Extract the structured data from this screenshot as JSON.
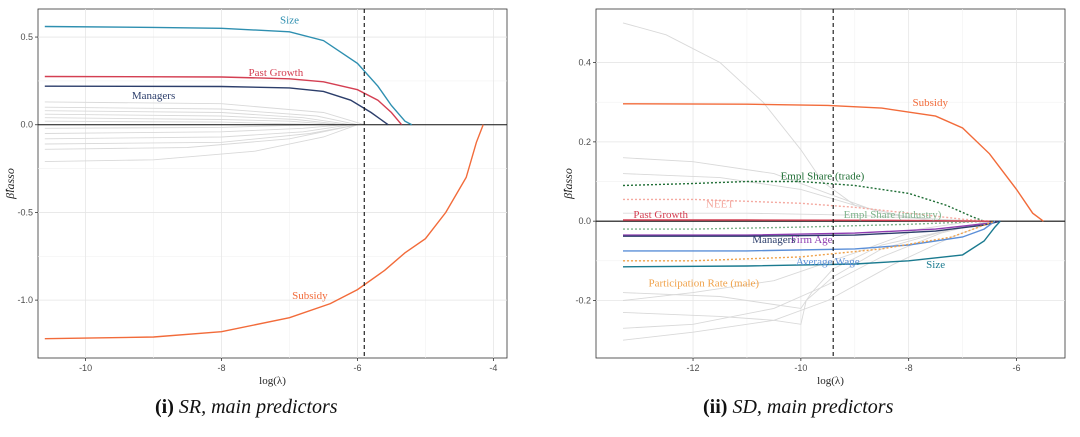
{
  "captions": [
    {
      "num": "(i)",
      "text": "SR, main predictors"
    },
    {
      "num": "(ii)",
      "text": "SD, main predictors"
    }
  ],
  "chart_data": [
    {
      "type": "line",
      "xlabel": "log(λ)",
      "ylabel": "β̂lasso",
      "xlim": [
        -10.7,
        -3.8
      ],
      "ylim": [
        -1.33,
        0.66
      ],
      "xticks": [
        -10,
        -8,
        -6,
        -4
      ],
      "yticks": [
        0.5,
        0.0,
        -0.5,
        -1.0
      ],
      "ytick_labels": [
        "0.5",
        "0.0",
        "-0.5",
        "-1.0"
      ],
      "vline": -5.9,
      "series": [
        {
          "name": "Size",
          "color": "#2e8fb0",
          "label_at": [
            -7.0,
            0.6
          ],
          "points": [
            [
              -10.6,
              0.56
            ],
            [
              -9,
              0.555
            ],
            [
              -8,
              0.55
            ],
            [
              -7,
              0.53
            ],
            [
              -6.5,
              0.48
            ],
            [
              -6,
              0.35
            ],
            [
              -5.7,
              0.22
            ],
            [
              -5.5,
              0.11
            ],
            [
              -5.3,
              0.02
            ],
            [
              -5.2,
              0.0
            ]
          ]
        },
        {
          "name": "Past Growth",
          "color": "#d43f52",
          "label_at": [
            -7.2,
            0.3
          ],
          "points": [
            [
              -10.6,
              0.275
            ],
            [
              -8,
              0.272
            ],
            [
              -7,
              0.262
            ],
            [
              -6.5,
              0.245
            ],
            [
              -6,
              0.2
            ],
            [
              -5.7,
              0.14
            ],
            [
              -5.5,
              0.07
            ],
            [
              -5.35,
              0.0
            ]
          ]
        },
        {
          "name": "Managers",
          "color": "#2c3e6b",
          "label_at": [
            -9.0,
            0.17
          ],
          "points": [
            [
              -10.6,
              0.22
            ],
            [
              -8,
              0.218
            ],
            [
              -7,
              0.21
            ],
            [
              -6.5,
              0.19
            ],
            [
              -6.1,
              0.14
            ],
            [
              -5.8,
              0.07
            ],
            [
              -5.55,
              0.0
            ]
          ]
        },
        {
          "name": "Subsidy",
          "color": "#f26b3a",
          "label_at": [
            -6.7,
            -0.97
          ],
          "points": [
            [
              -10.6,
              -1.22
            ],
            [
              -9,
              -1.21
            ],
            [
              -8,
              -1.18
            ],
            [
              -7,
              -1.1
            ],
            [
              -6.4,
              -1.02
            ],
            [
              -6,
              -0.94
            ],
            [
              -5.6,
              -0.83
            ],
            [
              -5.3,
              -0.73
            ],
            [
              -5,
              -0.65
            ],
            [
              -4.7,
              -0.5
            ],
            [
              -4.4,
              -0.3
            ],
            [
              -4.25,
              -0.1
            ],
            [
              -4.15,
              0.0
            ]
          ]
        }
      ],
      "background_series": [
        [
          [
            -10.6,
            0.13
          ],
          [
            -8,
            0.12
          ],
          [
            -6.5,
            0.07
          ],
          [
            -5.9,
            0.0
          ]
        ],
        [
          [
            -10.6,
            0.1
          ],
          [
            -8,
            0.09
          ],
          [
            -6.6,
            0.05
          ],
          [
            -6.0,
            0.0
          ]
        ],
        [
          [
            -10.6,
            0.08
          ],
          [
            -8,
            0.07
          ],
          [
            -6.8,
            0.04
          ],
          [
            -6.1,
            0.0
          ]
        ],
        [
          [
            -10.6,
            0.06
          ],
          [
            -8,
            0.05
          ],
          [
            -6.9,
            0.03
          ],
          [
            -6.2,
            0.0
          ]
        ],
        [
          [
            -10.6,
            0.04
          ],
          [
            -8,
            0.03
          ],
          [
            -7,
            0.02
          ],
          [
            -6.3,
            0.0
          ]
        ],
        [
          [
            -10.6,
            0.02
          ],
          [
            -8,
            0.015
          ],
          [
            -6.5,
            0.0
          ]
        ],
        [
          [
            -10.6,
            -0.02
          ],
          [
            -8,
            -0.015
          ],
          [
            -6.6,
            0.0
          ]
        ],
        [
          [
            -10.6,
            -0.05
          ],
          [
            -8,
            -0.04
          ],
          [
            -6.8,
            -0.02
          ],
          [
            -6.2,
            0.0
          ]
        ],
        [
          [
            -10.6,
            -0.08
          ],
          [
            -8,
            -0.07
          ],
          [
            -6.8,
            -0.04
          ],
          [
            -6.1,
            0.0
          ]
        ],
        [
          [
            -10.6,
            -0.11
          ],
          [
            -8,
            -0.1
          ],
          [
            -6.7,
            -0.05
          ],
          [
            -6.0,
            0.0
          ]
        ],
        [
          [
            -10.6,
            -0.14
          ],
          [
            -8.5,
            -0.13
          ],
          [
            -7,
            -0.08
          ],
          [
            -6.0,
            0.0
          ]
        ],
        [
          [
            -10.6,
            -0.21
          ],
          [
            -9,
            -0.2
          ],
          [
            -7.5,
            -0.15
          ],
          [
            -6.5,
            -0.07
          ],
          [
            -6.0,
            0.0
          ]
        ]
      ]
    },
    {
      "type": "line",
      "xlabel": "log(λ)",
      "ylabel": "β̂lasso",
      "xlim": [
        -13.8,
        -5.1
      ],
      "ylim": [
        -0.345,
        0.535
      ],
      "xticks": [
        -12,
        -10,
        -8,
        -6
      ],
      "yticks": [
        0.4,
        0.2,
        0.0,
        -0.2
      ],
      "ytick_labels": [
        "0.4",
        "0.2",
        "0.0",
        "-0.2"
      ],
      "vline": -9.4,
      "series": [
        {
          "name": "Subsidy",
          "color": "#f26b3a",
          "dash": "",
          "label_at": [
            -7.6,
            0.3
          ],
          "points": [
            [
              -13.3,
              0.296
            ],
            [
              -11,
              0.295
            ],
            [
              -9.5,
              0.292
            ],
            [
              -8.5,
              0.285
            ],
            [
              -7.5,
              0.265
            ],
            [
              -7,
              0.235
            ],
            [
              -6.5,
              0.17
            ],
            [
              -6,
              0.08
            ],
            [
              -5.7,
              0.02
            ],
            [
              -5.5,
              0.0
            ]
          ]
        },
        {
          "name": "Empl Share (trade)",
          "color": "#1f6e35",
          "dash": "2,2",
          "label_at": [
            -9.6,
            0.115
          ],
          "points": [
            [
              -13.3,
              0.09
            ],
            [
              -12,
              0.095
            ],
            [
              -11,
              0.1
            ],
            [
              -10,
              0.1
            ],
            [
              -9,
              0.09
            ],
            [
              -8,
              0.07
            ],
            [
              -7.3,
              0.04
            ],
            [
              -6.8,
              0.01
            ],
            [
              -6.6,
              0.0
            ]
          ]
        },
        {
          "name": "NEET",
          "color": "#f4a9a0",
          "dash": "2,2",
          "label_at": [
            -11.5,
            0.045
          ],
          "points": [
            [
              -13.3,
              0.055
            ],
            [
              -12,
              0.055
            ],
            [
              -11,
              0.05
            ],
            [
              -10,
              0.045
            ],
            [
              -9,
              0.035
            ],
            [
              -8,
              0.02
            ],
            [
              -7,
              0.005
            ],
            [
              -6.5,
              0.0
            ]
          ]
        },
        {
          "name": "Empl Share (industry)",
          "color": "#7fb38c",
          "dash": "2,2",
          "label_at": [
            -8.3,
            0.018
          ],
          "points": [
            [
              -13.3,
              -0.02
            ],
            [
              -12,
              -0.02
            ],
            [
              -10,
              -0.015
            ],
            [
              -8,
              -0.008
            ],
            [
              -6.5,
              0.0
            ]
          ]
        },
        {
          "name": "Past Growth",
          "color": "#d43f52",
          "dash": "",
          "label_at": [
            -12.6,
            0.018
          ],
          "points": [
            [
              -13.3,
              0.003
            ],
            [
              -11,
              0.003
            ],
            [
              -8,
              0.002
            ],
            [
              -6.5,
              0.0
            ]
          ]
        },
        {
          "name": "Firm Age",
          "color": "#8e3cb0",
          "dash": "",
          "label_at": [
            -9.8,
            -0.045
          ],
          "points": [
            [
              -13.3,
              -0.035
            ],
            [
              -11,
              -0.035
            ],
            [
              -9,
              -0.03
            ],
            [
              -7.5,
              -0.02
            ],
            [
              -6.5,
              -0.005
            ],
            [
              -6.3,
              0.0
            ]
          ]
        },
        {
          "name": "Managers",
          "color": "#2c3e6b",
          "dash": "",
          "label_at": [
            -10.5,
            -0.045
          ],
          "points": [
            [
              -13.3,
              -0.038
            ],
            [
              -11,
              -0.038
            ],
            [
              -9,
              -0.035
            ],
            [
              -7.5,
              -0.025
            ],
            [
              -6.6,
              -0.01
            ],
            [
              -6.3,
              0.0
            ]
          ]
        },
        {
          "name": "Average Wage",
          "color": "#5b8fd8",
          "dash": "",
          "label_at": [
            -9.5,
            -0.1
          ],
          "points": [
            [
              -13.3,
              -0.075
            ],
            [
              -11,
              -0.075
            ],
            [
              -9,
              -0.07
            ],
            [
              -8,
              -0.06
            ],
            [
              -7,
              -0.04
            ],
            [
              -6.6,
              -0.02
            ],
            [
              -6.4,
              0.0
            ]
          ]
        },
        {
          "name": "Participation Rate (male)",
          "color": "#f0a24a",
          "dash": "2,2",
          "label_at": [
            -11.8,
            -0.155
          ],
          "points": [
            [
              -13.3,
              -0.1
            ],
            [
              -12,
              -0.1
            ],
            [
              -10,
              -0.09
            ],
            [
              -8.5,
              -0.07
            ],
            [
              -7.2,
              -0.04
            ],
            [
              -6.6,
              -0.01
            ],
            [
              -6.4,
              0.0
            ]
          ]
        },
        {
          "name": "Size",
          "color": "#1a7a8f",
          "dash": "",
          "label_at": [
            -7.5,
            -0.108
          ],
          "points": [
            [
              -13.3,
              -0.115
            ],
            [
              -11,
              -0.113
            ],
            [
              -9,
              -0.108
            ],
            [
              -8,
              -0.1
            ],
            [
              -7,
              -0.085
            ],
            [
              -6.6,
              -0.05
            ],
            [
              -6.4,
              -0.015
            ],
            [
              -6.3,
              0.0
            ]
          ]
        }
      ],
      "background_series": [
        [
          [
            -13.3,
            0.5
          ],
          [
            -12.5,
            0.47
          ],
          [
            -11.5,
            0.4
          ],
          [
            -10.7,
            0.3
          ],
          [
            -10.0,
            0.18
          ],
          [
            -9.6,
            0.1
          ],
          [
            -9.0,
            0.04
          ],
          [
            -8.0,
            0.01
          ],
          [
            -7.0,
            0.0
          ]
        ],
        [
          [
            -13.3,
            0.16
          ],
          [
            -12,
            0.15
          ],
          [
            -10.5,
            0.12
          ],
          [
            -9.3,
            0.06
          ],
          [
            -8.5,
            0.02
          ],
          [
            -7.5,
            0.0
          ]
        ],
        [
          [
            -13.3,
            0.12
          ],
          [
            -11.5,
            0.11
          ],
          [
            -10,
            0.08
          ],
          [
            -9,
            0.04
          ],
          [
            -8,
            0.01
          ],
          [
            -7,
            0.0
          ]
        ],
        [
          [
            -13.3,
            -0.18
          ],
          [
            -11.5,
            -0.19
          ],
          [
            -10.5,
            -0.21
          ],
          [
            -10.0,
            -0.22
          ],
          [
            -9.8,
            -0.18
          ],
          [
            -9.4,
            -0.12
          ],
          [
            -8.5,
            -0.06
          ],
          [
            -7.5,
            -0.03
          ],
          [
            -6.5,
            0.0
          ]
        ],
        [
          [
            -13.3,
            -0.23
          ],
          [
            -11.5,
            -0.24
          ],
          [
            -10.5,
            -0.25
          ],
          [
            -10.0,
            -0.26
          ],
          [
            -9.9,
            -0.2
          ],
          [
            -9.4,
            -0.14
          ],
          [
            -8.5,
            -0.07
          ],
          [
            -7.2,
            -0.02
          ],
          [
            -6.4,
            0.0
          ]
        ],
        [
          [
            -13.3,
            -0.27
          ],
          [
            -12,
            -0.26
          ],
          [
            -10.5,
            -0.22
          ],
          [
            -9.5,
            -0.16
          ],
          [
            -8.5,
            -0.09
          ],
          [
            -7.4,
            -0.03
          ],
          [
            -6.5,
            0.0
          ]
        ],
        [
          [
            -13.3,
            -0.3
          ],
          [
            -12,
            -0.28
          ],
          [
            -10.5,
            -0.25
          ],
          [
            -9.5,
            -0.2
          ],
          [
            -8.3,
            -0.11
          ],
          [
            -7.2,
            -0.04
          ],
          [
            -6.4,
            0.0
          ]
        ],
        [
          [
            -13.3,
            -0.2
          ],
          [
            -12,
            -0.18
          ],
          [
            -10.5,
            -0.15
          ],
          [
            -9,
            -0.08
          ],
          [
            -7.8,
            -0.02
          ],
          [
            -6.8,
            0.0
          ]
        ],
        [
          [
            -13.3,
            0.02
          ],
          [
            -11,
            0.02
          ],
          [
            -9,
            0.015
          ],
          [
            -7.5,
            0.005
          ],
          [
            -6.5,
            0.0
          ]
        ]
      ]
    }
  ]
}
